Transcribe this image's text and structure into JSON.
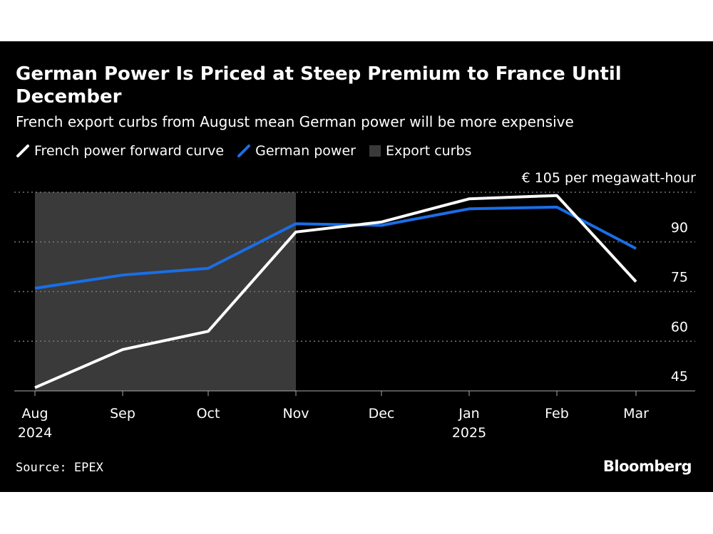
{
  "header": {
    "title": "German Power Is Priced at Steep Premium to France Until December",
    "subtitle": "French export curbs from August mean German power will be more expensive"
  },
  "legend": {
    "items": [
      {
        "label": "French power forward curve",
        "color": "#ffffff",
        "shape": "line"
      },
      {
        "label": "German power",
        "color": "#1a6ee6",
        "shape": "line"
      },
      {
        "label": "Export curbs",
        "color": "#3a3a3a",
        "shape": "square"
      }
    ]
  },
  "footer": {
    "source": "Source: EPEX",
    "brand": "Bloomberg"
  },
  "colors": {
    "background": "#000000",
    "french": "#ffffff",
    "german": "#1a6ee6",
    "shading": "#3a3a3a",
    "grid": "#777777"
  },
  "chart_data": {
    "type": "line",
    "title": "German Power Is Priced at Steep Premium to France Until December",
    "subtitle": "French export curbs from August mean German power will be more expensive",
    "x": [
      "2024-08",
      "2024-09",
      "2024-10",
      "2024-11",
      "2024-12",
      "2025-01",
      "2025-02",
      "2025-03"
    ],
    "x_tick_labels": [
      {
        "month": "Aug",
        "year": "2024"
      },
      {
        "month": "Sep",
        "year": ""
      },
      {
        "month": "Oct",
        "year": ""
      },
      {
        "month": "Nov",
        "year": ""
      },
      {
        "month": "Dec",
        "year": ""
      },
      {
        "month": "Jan",
        "year": "2025"
      },
      {
        "month": "Feb",
        "year": ""
      },
      {
        "month": "Mar",
        "year": ""
      }
    ],
    "series": [
      {
        "name": "French power forward curve",
        "values": [
          46,
          57.5,
          63,
          93,
          96,
          103,
          104,
          78
        ]
      },
      {
        "name": "German power",
        "values": [
          76,
          80,
          82,
          95.5,
          95,
          100,
          100.5,
          88
        ]
      }
    ],
    "shaded_region": {
      "label": "Export curbs",
      "x_start": "2024-08",
      "x_end": "2024-11",
      "y_top": 105
    },
    "y_ticks": [
      45,
      60,
      75,
      90
    ],
    "y_top_label": "€ 105 per megawatt-hour",
    "gridlines": [
      60,
      75,
      90,
      105
    ],
    "ylim": [
      45,
      105
    ],
    "grid": true,
    "legend_position": "top-left",
    "y_axis_side": "right"
  }
}
